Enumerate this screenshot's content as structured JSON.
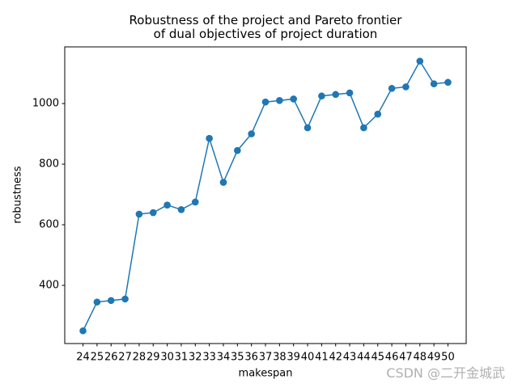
{
  "chart_data": {
    "type": "line",
    "title": "Robustness of the project and Pareto frontier\nof dual objectives of project duration",
    "x_label": "makespan",
    "y_label": "robustness",
    "x": [
      24,
      25,
      26,
      27,
      28,
      29,
      30,
      31,
      32,
      33,
      34,
      35,
      36,
      37,
      38,
      39,
      40,
      41,
      42,
      43,
      44,
      45,
      46,
      47,
      48,
      49,
      50
    ],
    "values": [
      250,
      345,
      350,
      355,
      635,
      640,
      665,
      650,
      675,
      885,
      740,
      845,
      900,
      1005,
      1010,
      1015,
      920,
      1025,
      1030,
      1035,
      920,
      965,
      1050,
      1055,
      1140,
      1065,
      1070
    ],
    "color": "#1f77b4",
    "marker": "circle",
    "xlim": [
      22.7,
      51.3
    ],
    "xticks": [
      24,
      25,
      26,
      27,
      28,
      29,
      30,
      31,
      32,
      33,
      34,
      35,
      36,
      37,
      38,
      39,
      40,
      41,
      42,
      43,
      44,
      45,
      46,
      47,
      48,
      49,
      50
    ],
    "ylim": [
      208,
      1187
    ],
    "yticks": [
      400,
      600,
      800,
      1000
    ],
    "grid": false
  },
  "watermark": "CSDN @二开金城武"
}
